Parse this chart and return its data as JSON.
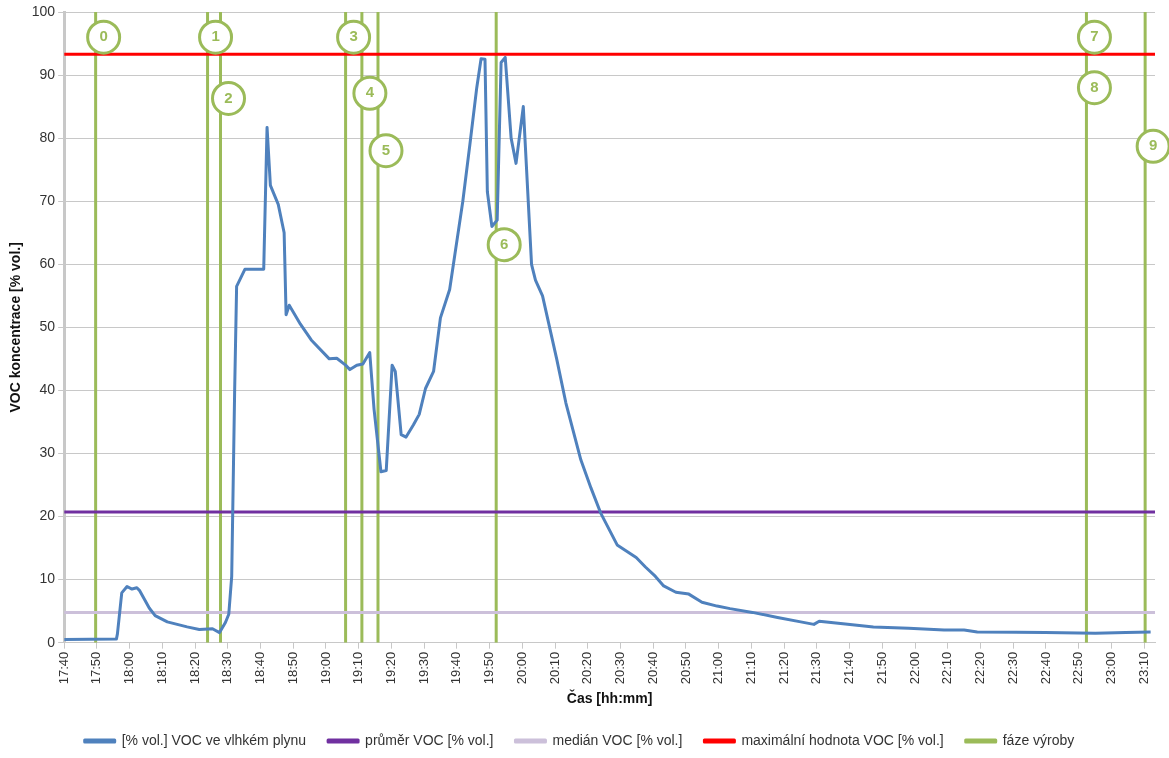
{
  "chart_data": {
    "type": "line",
    "xlabel": "Čas [hh:mm]",
    "ylabel": "VOC koncentrace [% vol.]",
    "xlim": [
      17.6667,
      23.2222
    ],
    "xticks": [
      {
        "value": 17.6667,
        "label": "17:40"
      },
      {
        "value": 17.8333,
        "label": "17:50"
      },
      {
        "value": 18,
        "label": "18:00"
      },
      {
        "value": 18.1667,
        "label": "18:10"
      },
      {
        "value": 18.3333,
        "label": "18:20"
      },
      {
        "value": 18.5,
        "label": "18:30"
      },
      {
        "value": 18.6667,
        "label": "18:40"
      },
      {
        "value": 18.8333,
        "label": "18:50"
      },
      {
        "value": 19,
        "label": "19:00"
      },
      {
        "value": 19.1667,
        "label": "19:10"
      },
      {
        "value": 19.3333,
        "label": "19:20"
      },
      {
        "value": 19.5,
        "label": "19:30"
      },
      {
        "value": 19.6667,
        "label": "19:40"
      },
      {
        "value": 19.8333,
        "label": "19:50"
      },
      {
        "value": 20,
        "label": "20:00"
      },
      {
        "value": 20.1667,
        "label": "20:10"
      },
      {
        "value": 20.3333,
        "label": "20:20"
      },
      {
        "value": 20.5,
        "label": "20:30"
      },
      {
        "value": 20.6667,
        "label": "20:40"
      },
      {
        "value": 20.8333,
        "label": "20:50"
      },
      {
        "value": 21,
        "label": "21:00"
      },
      {
        "value": 21.1667,
        "label": "21:10"
      },
      {
        "value": 21.3333,
        "label": "21:20"
      },
      {
        "value": 21.5,
        "label": "21:30"
      },
      {
        "value": 21.6667,
        "label": "21:40"
      },
      {
        "value": 21.8333,
        "label": "21:50"
      },
      {
        "value": 22,
        "label": "22:00"
      },
      {
        "value": 22.1667,
        "label": "22:10"
      },
      {
        "value": 22.3333,
        "label": "22:20"
      },
      {
        "value": 22.5,
        "label": "22:30"
      },
      {
        "value": 22.6667,
        "label": "22:40"
      },
      {
        "value": 22.8333,
        "label": "22:50"
      },
      {
        "value": 23,
        "label": "23:00"
      },
      {
        "value": 23.1667,
        "label": "23:10"
      }
    ],
    "ylim": [
      0,
      100
    ],
    "yticks": [
      0,
      10,
      20,
      30,
      40,
      50,
      60,
      70,
      80,
      90,
      100
    ],
    "grid": "y",
    "legend": "bottom",
    "marker": "none",
    "line_style": "solid",
    "series": [
      {
        "name": "[% vol.] VOC ve vlhkém plynu",
        "color": "#4f81bd",
        "x": [
          17.667,
          17.933,
          17.938,
          17.96,
          17.987,
          18.012,
          18.037,
          18.05,
          18.1,
          18.13,
          18.192,
          18.293,
          18.355,
          18.422,
          18.458,
          18.488,
          18.505,
          18.52,
          18.535,
          18.545,
          18.587,
          18.683,
          18.7,
          18.717,
          18.757,
          18.787,
          18.797,
          18.813,
          18.87,
          18.925,
          19.017,
          19.055,
          19.1,
          19.122,
          19.157,
          19.188,
          19.223,
          19.245,
          19.28,
          19.307,
          19.337,
          19.353,
          19.383,
          19.408,
          19.445,
          19.475,
          19.507,
          19.548,
          19.583,
          19.63,
          19.697,
          19.733,
          19.768,
          19.79,
          19.81,
          19.822,
          19.845,
          19.872,
          19.892,
          19.913,
          19.943,
          19.968,
          20.005,
          20.047,
          20.067,
          20.103,
          20.175,
          20.222,
          20.298,
          20.35,
          20.4,
          20.483,
          20.58,
          20.627,
          20.678,
          20.72,
          20.782,
          20.848,
          20.915,
          20.992,
          21.058,
          21.172,
          21.3,
          21.418,
          21.485,
          21.512,
          21.633,
          21.788,
          21.968,
          22.148,
          22.25,
          22.317,
          22.662,
          22.918,
          23.073,
          23.2
        ],
        "values": [
          0.5,
          0.6,
          1.4,
          7.9,
          8.9,
          8.5,
          8.7,
          8.3,
          5.5,
          4.3,
          3.3,
          2.5,
          2.1,
          2.2,
          1.6,
          3.2,
          4.5,
          10.5,
          40,
          56.5,
          59.2,
          59.2,
          81.7,
          72.5,
          69.5,
          65,
          52,
          53.5,
          50.5,
          48,
          45,
          45.1,
          44,
          43.3,
          44,
          44.2,
          46,
          37,
          27.1,
          27.3,
          44,
          43,
          33,
          32.6,
          34.5,
          36.2,
          40.3,
          43,
          51.5,
          56,
          70,
          79,
          88,
          92.6,
          92.5,
          71.5,
          66,
          67,
          92,
          92.8,
          80,
          76,
          85,
          60,
          57.5,
          55,
          45,
          38,
          29,
          24.5,
          20.5,
          15.5,
          13.5,
          12,
          10.5,
          9,
          8,
          7.7,
          6.4,
          5.8,
          5.4,
          4.8,
          4,
          3.3,
          2.9,
          3.4,
          3,
          2.5,
          2.3,
          2,
          2,
          1.7,
          1.6,
          1.5,
          1.6,
          1.7
        ]
      },
      {
        "name": "průměr VOC [% vol.]",
        "color": "#7030a0",
        "x": [
          17.6667,
          23.2222
        ],
        "values": [
          20.7,
          20.7
        ]
      },
      {
        "name": "medián VOC [% vol.]",
        "color": "#ccc0da",
        "x": [
          17.6667,
          23.2222
        ],
        "values": [
          4.8,
          4.8
        ]
      },
      {
        "name": "maximální hodnota VOC [% vol.]",
        "color": "#ff0000",
        "x": [
          17.6667,
          23.2222
        ],
        "values": [
          93.3,
          93.3
        ]
      },
      {
        "name": "fáze výroby",
        "color": "#9bbb59",
        "x": [
          17.827,
          17.827,
          null,
          18.397,
          18.397,
          null,
          18.463,
          18.463,
          null,
          19.1,
          19.1,
          null,
          19.183,
          19.183,
          null,
          19.265,
          19.265,
          null,
          19.867,
          19.867,
          null,
          22.873,
          22.873,
          null,
          23.172,
          23.172
        ],
        "values": [
          0,
          100,
          null,
          0,
          100,
          null,
          0,
          100,
          null,
          0,
          100,
          null,
          0,
          100,
          null,
          0,
          100,
          null,
          0,
          100,
          null,
          0,
          100,
          null,
          0,
          100
        ]
      }
    ],
    "annotations": [
      {
        "text": "0",
        "x": 17.827,
        "y": 96
      },
      {
        "text": "1",
        "x": 18.397,
        "y": 96
      },
      {
        "text": "2",
        "x": 18.463,
        "y": 86.3
      },
      {
        "text": "3",
        "x": 19.1,
        "y": 96
      },
      {
        "text": "4",
        "x": 19.183,
        "y": 87.1
      },
      {
        "text": "5",
        "x": 19.265,
        "y": 78
      },
      {
        "text": "6",
        "x": 19.867,
        "y": 63.1
      },
      {
        "text": "7",
        "x": 22.873,
        "y": 96
      },
      {
        "text": "8",
        "x": 22.873,
        "y": 88
      },
      {
        "text": "9",
        "x": 23.172,
        "y": 78.7
      }
    ]
  }
}
